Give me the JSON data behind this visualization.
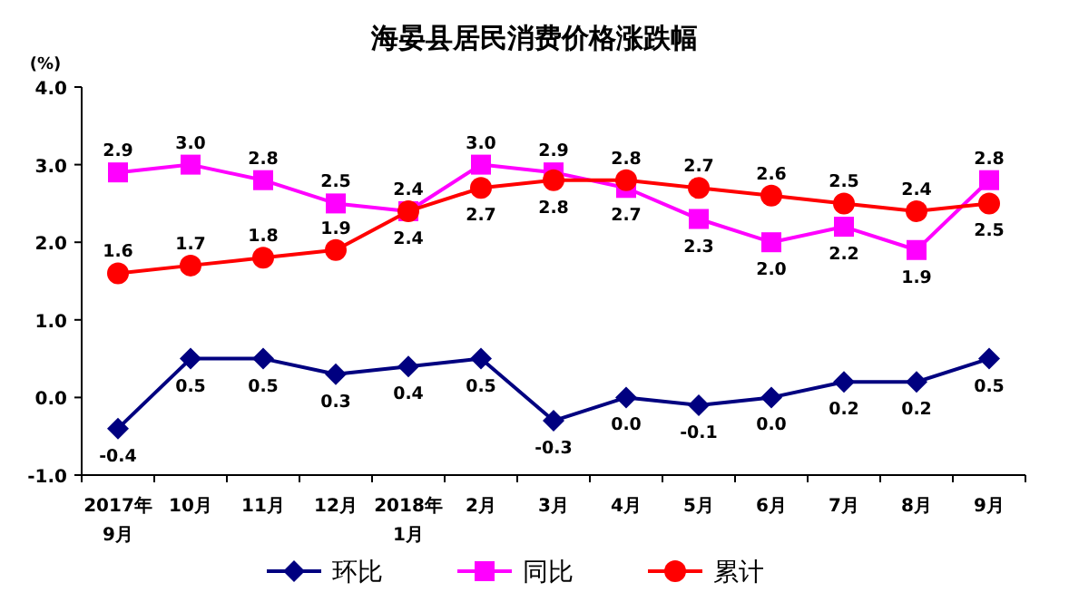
{
  "chart_data": {
    "type": "line",
    "title": "海晏县居民消费价格涨跌幅",
    "ylabel": "(%)",
    "categories": [
      "2017年\n9月",
      "10月",
      "11月",
      "12月",
      "2018年\n1月",
      "2月",
      "3月",
      "4月",
      "5月",
      "6月",
      "7月",
      "8月",
      "9月"
    ],
    "series": [
      {
        "name": "环比",
        "color": "#000080",
        "marker": "diamond",
        "values": [
          -0.4,
          0.5,
          0.5,
          0.3,
          0.4,
          0.5,
          -0.3,
          0.0,
          -0.1,
          0.0,
          0.2,
          0.2,
          0.5
        ],
        "value_labels": [
          "-0.4",
          "0.5",
          "0.5",
          "0.3",
          "0.4",
          "0.5",
          "-0.3",
          "0.0",
          "-0.1",
          "0.0",
          "0.2",
          "0.2",
          "0.5"
        ]
      },
      {
        "name": "同比",
        "color": "#ff00ff",
        "marker": "square",
        "values": [
          2.9,
          3.0,
          2.8,
          2.5,
          2.4,
          3.0,
          2.9,
          2.7,
          2.3,
          2.0,
          2.2,
          1.9,
          2.8
        ],
        "value_labels": [
          "2.9",
          "3.0",
          "2.8",
          "2.5",
          "2.4",
          "3.0",
          "2.9",
          "2.7",
          "2.3",
          "2.0",
          "2.2",
          "1.9",
          "2.8"
        ]
      },
      {
        "name": "累计",
        "color": "#ff0000",
        "marker": "circle",
        "values": [
          1.6,
          1.7,
          1.8,
          1.9,
          2.4,
          2.7,
          2.8,
          2.8,
          2.7,
          2.6,
          2.5,
          2.4,
          2.5
        ],
        "value_labels": [
          "1.6",
          "1.7",
          "1.8",
          "1.9",
          "2.4",
          "2.7",
          "2.8",
          "2.8",
          "2.7",
          "2.6",
          "2.5",
          "2.4",
          "2.5"
        ]
      }
    ],
    "ylim": [
      -1,
      4
    ],
    "yticks": [
      {
        "value": -1,
        "label": "-1.0"
      },
      {
        "value": 0,
        "label": "0.0"
      },
      {
        "value": 1,
        "label": "1.0"
      },
      {
        "value": 2,
        "label": "2.0"
      },
      {
        "value": 3,
        "label": "3.0"
      },
      {
        "value": 4,
        "label": "4.0"
      }
    ],
    "grid": false,
    "legend": "bottom"
  }
}
